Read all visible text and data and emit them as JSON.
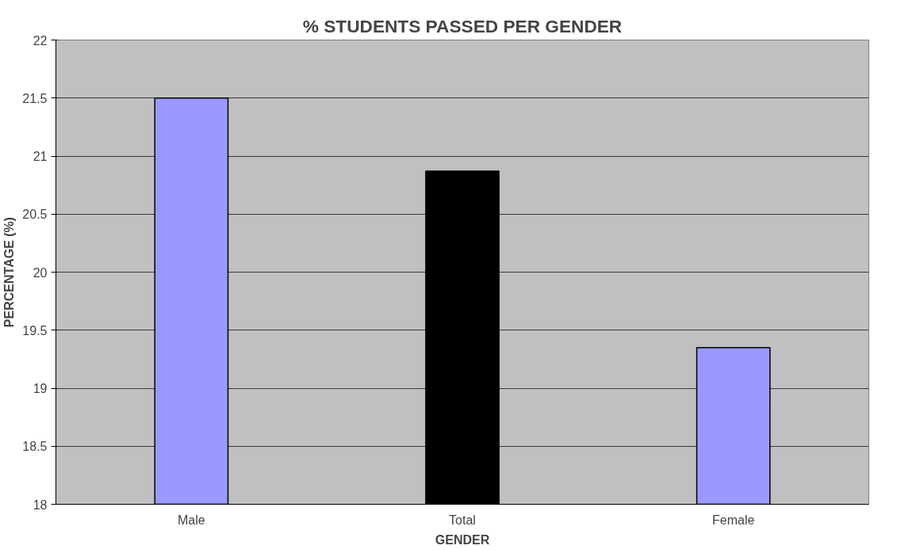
{
  "chart_data": {
    "type": "bar",
    "title": "% STUDENTS PASSED PER GENDER",
    "xlabel": "GENDER",
    "ylabel": "PERCENTAGE (%)",
    "categories": [
      "Male",
      "Total",
      "Female"
    ],
    "values": [
      21.5,
      20.87,
      19.35
    ],
    "colors": [
      "#9999ff",
      "#000000",
      "#9999ff"
    ],
    "ylim": [
      18,
      22
    ],
    "yticks": [
      18,
      18.5,
      19,
      19.5,
      20,
      20.5,
      21,
      21.5,
      22
    ],
    "grid": "y"
  }
}
